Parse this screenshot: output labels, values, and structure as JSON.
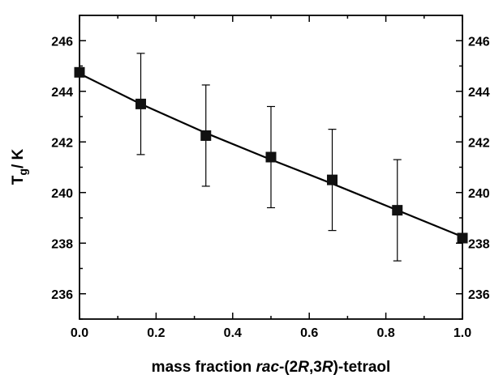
{
  "chart_data": {
    "type": "scatter",
    "xlabel_parts": [
      "mass fraction ",
      "rac",
      "-(2",
      "R",
      ",3",
      "R",
      ")-tetraol"
    ],
    "ylabel_main": "T",
    "ylabel_sub": "g",
    "ylabel_unit": "/ K",
    "xlim": [
      0.0,
      1.0
    ],
    "ylim": [
      235,
      247
    ],
    "x_ticks": [
      0.0,
      0.2,
      0.4,
      0.6,
      0.8,
      1.0
    ],
    "x_tick_labels": [
      "0.0",
      "0.2",
      "0.4",
      "0.6",
      "0.8",
      "1.0"
    ],
    "y_ticks": [
      236,
      238,
      240,
      242,
      244,
      246
    ],
    "y_tick_labels": [
      "236",
      "238",
      "240",
      "242",
      "244",
      "246"
    ],
    "right_axis_mirrored": true,
    "grid": false,
    "marker": "square",
    "series": [
      {
        "x": [
          0.0,
          0.16,
          0.33,
          0.5,
          0.66,
          0.83,
          1.0
        ],
        "y": [
          244.75,
          243.5,
          242.25,
          241.4,
          240.5,
          239.3,
          238.2
        ],
        "yerr": [
          0,
          2.0,
          2.0,
          2.0,
          2.0,
          2.0,
          0
        ]
      }
    ],
    "fit_line": {
      "x": [
        0.0,
        0.16,
        0.33,
        0.5,
        0.66,
        0.83,
        1.0
      ],
      "y": [
        244.7,
        243.5,
        242.35,
        241.3,
        240.35,
        239.3,
        238.25
      ]
    }
  }
}
